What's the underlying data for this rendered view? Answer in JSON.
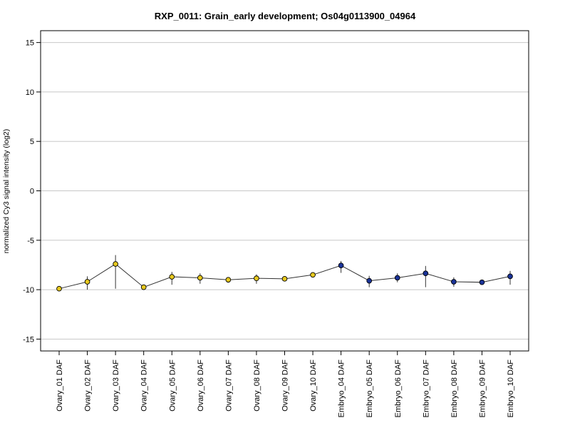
{
  "chart_data": {
    "type": "line",
    "title": "RXP_0011: Grain_early development; Os04g0113900_04964",
    "xlabel": "",
    "ylabel": "normalized Cy3 signal intensity (log2)",
    "ylim": [
      -16.2,
      16.2
    ],
    "yticks": [
      -15,
      -10,
      -5,
      0,
      5,
      10,
      15
    ],
    "ytick_labels": [
      "-15",
      "-10",
      "-5",
      "0",
      "5",
      "10",
      "15"
    ],
    "grid": true,
    "categories": [
      "Ovary_01 DAF",
      "Ovary_02 DAF",
      "Ovary_03 DAF",
      "Ovary_04 DAF",
      "Ovary_05 DAF",
      "Ovary_06 DAF",
      "Ovary_07 DAF",
      "Ovary_08 DAF",
      "Ovary_09 DAF",
      "Ovary_10 DAF",
      "Embryo_04 DAF",
      "Embryo_05 DAF",
      "Embryo_06 DAF",
      "Embryo_07 DAF",
      "Embryo_08 DAF",
      "Embryo_09 DAF",
      "Embryo_10 DAF"
    ],
    "series": [
      {
        "values": [
          -9.9,
          -9.2,
          -7.4,
          -9.75,
          -8.7,
          -8.8,
          -9.0,
          -8.85,
          -8.9,
          -8.5,
          -7.55,
          -9.1,
          -8.8,
          -8.35,
          -9.2,
          -9.25,
          -8.65
        ],
        "err_low": [
          -10.1,
          -10.0,
          -9.9,
          -9.95,
          -9.5,
          -9.4,
          -9.15,
          -9.4,
          -9.05,
          -8.65,
          -8.3,
          -9.75,
          -9.25,
          -9.75,
          -9.7,
          -9.35,
          -9.5
        ],
        "err_high": [
          -9.65,
          -8.65,
          -6.5,
          -9.5,
          -8.2,
          -8.35,
          -8.8,
          -8.45,
          -8.75,
          -8.3,
          -7.1,
          -8.6,
          -8.35,
          -7.6,
          -8.75,
          -9.15,
          -8.1
        ],
        "colors": [
          "#e6c81e",
          "#e6c81e",
          "#e6c81e",
          "#e6c81e",
          "#e6c81e",
          "#e6c81e",
          "#e6c81e",
          "#e6c81e",
          "#e6c81e",
          "#e6c81e",
          "#1a3399",
          "#1a3399",
          "#1a3399",
          "#1a3399",
          "#1a3399",
          "#1a3399",
          "#1a3399"
        ]
      }
    ]
  }
}
